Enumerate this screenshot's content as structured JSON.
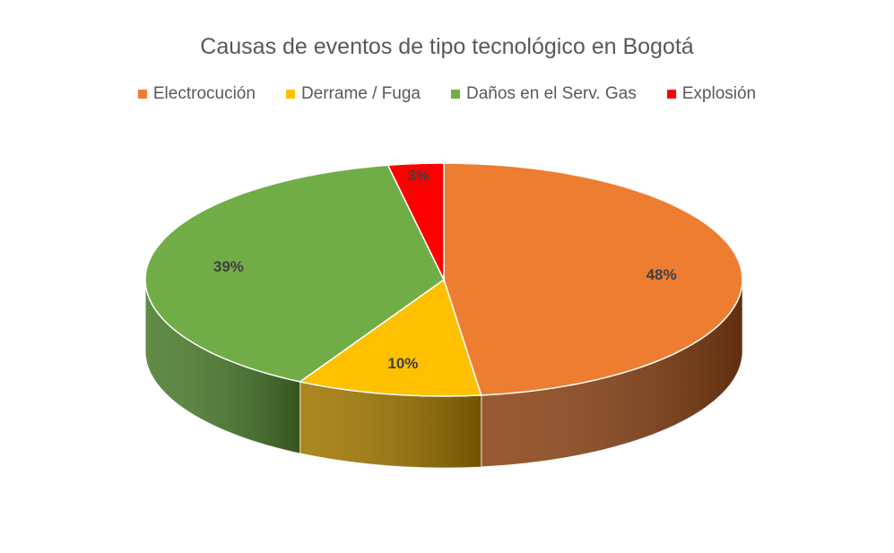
{
  "chart_data": {
    "type": "pie",
    "title": "Causas de eventos de tipo tecnológico en Bogotá",
    "legend_position": "top",
    "slices": [
      {
        "label": "Electrocución",
        "value": 48,
        "display": "48%",
        "color": "#ED7D31",
        "side_color": "#8A4316"
      },
      {
        "label": "Derrame / Fuga",
        "value": 10,
        "display": "10%",
        "color": "#FFC000",
        "side_color": "#A07600"
      },
      {
        "label": "Daños en el Serv. Gas",
        "value": 39,
        "display": "39%",
        "color": "#70AD47",
        "side_color": "#4A7A2C"
      },
      {
        "label": "Explosión",
        "value": 3,
        "display": "3%",
        "color": "#FF0000",
        "side_color": "#9E0000"
      }
    ]
  }
}
